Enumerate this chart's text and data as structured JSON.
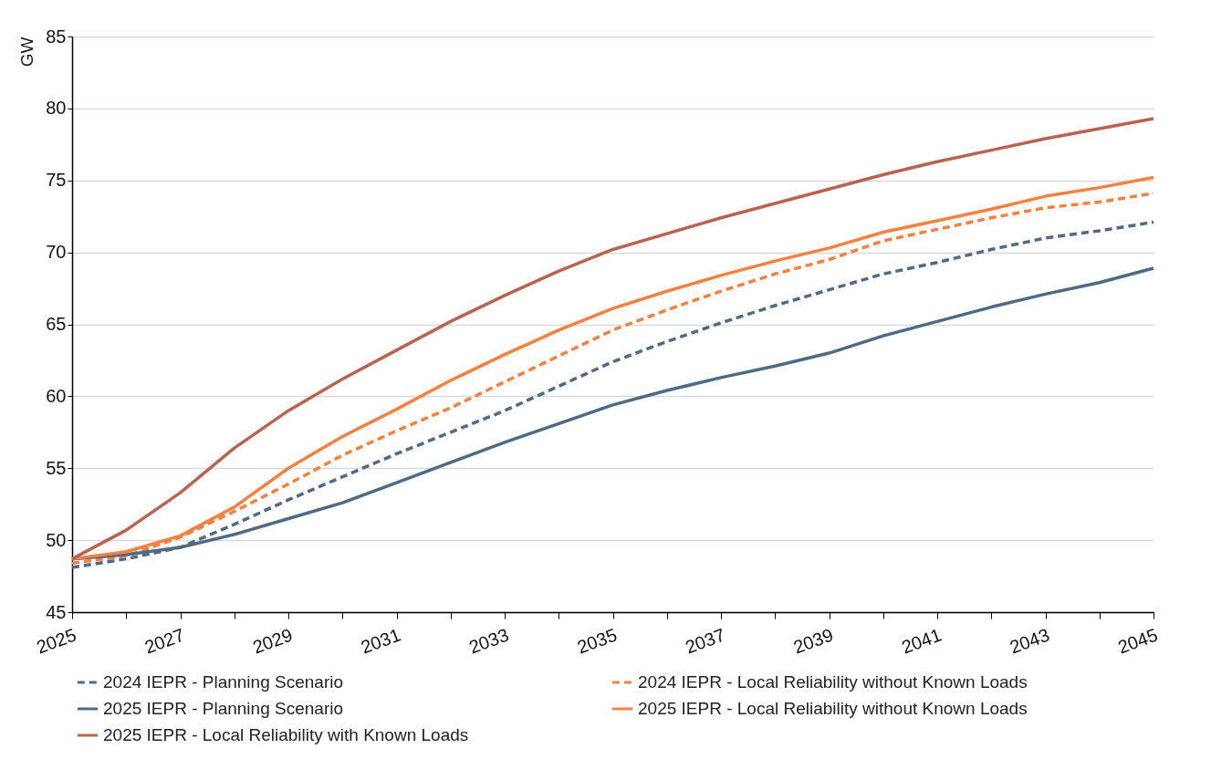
{
  "chart_data": {
    "type": "line",
    "ylabel": "GW",
    "x": [
      2025,
      2026,
      2027,
      2028,
      2029,
      2030,
      2031,
      2032,
      2033,
      2034,
      2035,
      2036,
      2037,
      2038,
      2039,
      2040,
      2041,
      2042,
      2043,
      2044,
      2045
    ],
    "xlim": [
      2025,
      2045
    ],
    "xticks": [
      2025,
      {
        "value": 2026,
        "label": null
      },
      2027,
      {
        "value": 2028,
        "label": null
      },
      2029,
      {
        "value": 2030,
        "label": null
      },
      2031,
      {
        "value": 2032,
        "label": null
      },
      2033,
      {
        "value": 2034,
        "label": null
      },
      2035,
      {
        "value": 2036,
        "label": null
      },
      2037,
      {
        "value": 2038,
        "label": null
      },
      2039,
      {
        "value": 2040,
        "label": null
      },
      2041,
      {
        "value": 2042,
        "label": null
      },
      2043,
      {
        "value": 2044,
        "label": null
      },
      2045
    ],
    "ylim": [
      45,
      85
    ],
    "yticks": [
      45,
      50,
      55,
      60,
      65,
      70,
      75,
      80,
      85
    ],
    "grid": "y",
    "legend": "bottom",
    "series": [
      {
        "name": "2024 IEPR - Planning Scenario",
        "color": "#4e6a85",
        "line_style": "dashed",
        "values": [
          48.1,
          48.7,
          49.5,
          51.1,
          52.8,
          54.4,
          56.0,
          57.5,
          59.0,
          60.7,
          62.4,
          63.8,
          65.1,
          66.3,
          67.4,
          68.5,
          69.3,
          70.2,
          71.0,
          71.5,
          72.1
        ]
      },
      {
        "name": "2024 IEPR - Local Reliability without Known Loads",
        "color": "#f4813f",
        "line_style": "dashed",
        "values": [
          48.4,
          48.9,
          50.2,
          52.0,
          53.9,
          55.9,
          57.6,
          59.2,
          61.0,
          62.8,
          64.6,
          66.0,
          67.3,
          68.5,
          69.5,
          70.8,
          71.6,
          72.4,
          73.1,
          73.5,
          74.1
        ]
      },
      {
        "name": "2025 IEPR - Planning Scenario",
        "color": "#4e6a85",
        "line_style": "solid",
        "values": [
          48.7,
          49.0,
          49.5,
          50.4,
          51.5,
          52.6,
          54.0,
          55.4,
          56.8,
          58.1,
          59.4,
          60.4,
          61.3,
          62.1,
          63.0,
          64.2,
          65.2,
          66.2,
          67.1,
          67.9,
          68.9
        ]
      },
      {
        "name": "2025 IEPR - Local Reliability without Known Loads",
        "color": "#f4813f",
        "line_style": "solid",
        "values": [
          48.7,
          49.2,
          50.3,
          52.3,
          55.0,
          57.2,
          59.1,
          61.1,
          62.9,
          64.6,
          66.1,
          67.3,
          68.4,
          69.4,
          70.3,
          71.4,
          72.2,
          73.0,
          73.9,
          74.5,
          75.2
        ]
      },
      {
        "name": "2025 IEPR - Local Reliability with Known Loads",
        "color": "#b86450",
        "line_style": "solid",
        "values": [
          48.7,
          50.7,
          53.3,
          56.4,
          59.0,
          61.2,
          63.2,
          65.2,
          67.0,
          68.7,
          70.2,
          71.3,
          72.4,
          73.4,
          74.4,
          75.4,
          76.3,
          77.1,
          77.9,
          78.6,
          79.3
        ]
      }
    ]
  }
}
